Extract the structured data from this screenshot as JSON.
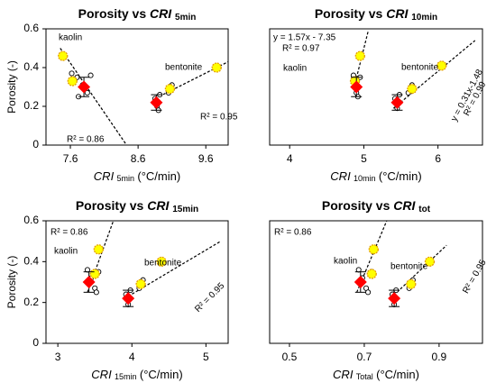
{
  "chart_data": [
    {
      "type": "scatter",
      "title": "Porosity vs",
      "title_var": "CRI",
      "title_sub": "5min",
      "xlabel_var": "CRI",
      "xlabel_sub": "5min",
      "xlabel_unit": "(°C/min)",
      "ylabel": "Porosity (-)",
      "xlim": [
        7.24,
        9.93
      ],
      "xticks": [
        7.6,
        8.6,
        9.6
      ],
      "ylim": [
        0,
        0.6
      ],
      "yticks": [
        0,
        0.2,
        0.4,
        0.6
      ],
      "series": [
        {
          "color": "#ffffff",
          "marker": "circle",
          "x": [
            7.62,
            7.7,
            7.78,
            7.85,
            7.9,
            7.72,
            8.85,
            8.88,
            8.9,
            8.92,
            9.05,
            9.1
          ],
          "values": [
            0.37,
            0.35,
            0.31,
            0.27,
            0.36,
            0.25,
            0.24,
            0.2,
            0.18,
            0.26,
            0.27,
            0.31
          ]
        },
        {
          "color": "#ffff00",
          "marker": "circle",
          "x": [
            7.49,
            7.63,
            9.07,
            9.76
          ],
          "values": [
            0.46,
            0.33,
            0.29,
            0.4
          ]
        },
        {
          "color": "#ff0000",
          "marker": "diamond",
          "x": [
            7.8,
            8.87
          ],
          "values": [
            0.3,
            0.22
          ],
          "errors": [
            0.05,
            0.04
          ]
        }
      ],
      "trendlines": [
        {
          "x": [
            7.45,
            8.43
          ],
          "y": [
            0.5,
            0
          ]
        },
        {
          "x": [
            8.85,
            9.93
          ],
          "y": [
            0.24,
            0.43
          ]
        }
      ],
      "annotations": [
        "kaolin",
        "bentonite",
        "R² = 0.95",
        "R² = 0.86"
      ]
    },
    {
      "type": "scatter",
      "title": "Porosity vs",
      "title_var": "CRI",
      "title_sub": "10min",
      "xlabel_var": "CRI",
      "xlabel_sub": "10min",
      "xlabel_unit": "(°C/min)",
      "xlim": [
        3.73,
        6.6
      ],
      "xticks": [
        4,
        5,
        6
      ],
      "ylim": [
        0,
        0.6
      ],
      "series": [
        {
          "color": "#ffffff",
          "marker": "circle",
          "x": [
            4.86,
            4.88,
            4.9,
            4.92,
            4.95,
            5.42,
            5.45,
            5.48,
            5.6,
            5.65
          ],
          "values": [
            0.36,
            0.33,
            0.27,
            0.25,
            0.35,
            0.24,
            0.19,
            0.26,
            0.27,
            0.31
          ]
        },
        {
          "color": "#ffff00",
          "marker": "circle",
          "x": [
            4.95,
            4.88,
            5.65,
            6.05
          ],
          "values": [
            0.46,
            0.33,
            0.29,
            0.41
          ]
        },
        {
          "color": "#ff0000",
          "marker": "diamond",
          "x": [
            4.9,
            5.45
          ],
          "values": [
            0.3,
            0.22
          ],
          "errors": [
            0.05,
            0.04
          ]
        }
      ],
      "trendlines": [
        {
          "x": [
            4.87,
            5.06
          ],
          "y": [
            0.3,
            0.59
          ]
        },
        {
          "x": [
            5.4,
            6.5
          ],
          "y": [
            0.19,
            0.54
          ]
        }
      ],
      "annotations": [
        "y = 1.57x - 7.35",
        "R² = 0.97",
        "kaolin",
        "bentonite",
        "y = 0.31x-1.48",
        "R² = 0.99"
      ]
    },
    {
      "type": "scatter",
      "title": "Porosity vs",
      "title_var": "CRI",
      "title_sub": "15min",
      "xlabel_var": "CRI",
      "xlabel_sub": "15min",
      "xlabel_unit": "(°C/min)",
      "ylabel": "Porosity (-)",
      "xlim": [
        2.84,
        5.3
      ],
      "xticks": [
        3,
        4,
        5
      ],
      "ylim": [
        0,
        0.6
      ],
      "yticks": [
        0,
        0.2,
        0.4,
        0.6
      ],
      "series": [
        {
          "color": "#ffffff",
          "marker": "circle",
          "x": [
            3.4,
            3.45,
            3.5,
            3.52,
            3.55,
            3.92,
            3.95,
            3.98,
            4.1,
            4.15
          ],
          "values": [
            0.36,
            0.32,
            0.27,
            0.25,
            0.35,
            0.24,
            0.19,
            0.26,
            0.27,
            0.31
          ]
        },
        {
          "color": "#ffff00",
          "marker": "circle",
          "x": [
            3.55,
            3.5,
            4.12,
            4.4
          ],
          "values": [
            0.46,
            0.34,
            0.29,
            0.4
          ]
        },
        {
          "color": "#ff0000",
          "marker": "diamond",
          "x": [
            3.42,
            3.95
          ],
          "values": [
            0.3,
            0.22
          ],
          "errors": [
            0.05,
            0.04
          ]
        }
      ],
      "trendlines": [
        {
          "x": [
            3.4,
            3.75
          ],
          "y": [
            0.25,
            0.6
          ]
        },
        {
          "x": [
            3.95,
            5.2
          ],
          "y": [
            0.23,
            0.5
          ]
        }
      ],
      "annotations": [
        "R² = 0.86",
        "kaolin",
        "bentonite",
        "R² = 0.95"
      ]
    },
    {
      "type": "scatter",
      "title": "Porosity vs",
      "title_var": "CRI",
      "title_sub": "tot",
      "xlabel_var": "CRI",
      "xlabel_sub": "Total",
      "xlabel_unit": "(°C/min)",
      "xlim": [
        0.447,
        1.016
      ],
      "xticks": [
        0.5,
        0.7,
        0.9
      ],
      "ylim": [
        0,
        0.6
      ],
      "series": [
        {
          "color": "#ffffff",
          "marker": "circle",
          "x": [
            0.685,
            0.695,
            0.705,
            0.71,
            0.72,
            0.775,
            0.78,
            0.785,
            0.82,
            0.83
          ],
          "values": [
            0.36,
            0.32,
            0.27,
            0.25,
            0.35,
            0.24,
            0.19,
            0.26,
            0.27,
            0.31
          ]
        },
        {
          "color": "#ffff00",
          "marker": "circle",
          "x": [
            0.725,
            0.72,
            0.825,
            0.875
          ],
          "values": [
            0.46,
            0.34,
            0.29,
            0.4
          ]
        },
        {
          "color": "#ff0000",
          "marker": "diamond",
          "x": [
            0.69,
            0.78
          ],
          "values": [
            0.3,
            0.22
          ],
          "errors": [
            0.05,
            0.04
          ]
        }
      ],
      "trendlines": [
        {
          "x": [
            0.68,
            0.76
          ],
          "y": [
            0.25,
            0.6
          ]
        },
        {
          "x": [
            0.77,
            0.92
          ],
          "y": [
            0.22,
            0.48
          ]
        }
      ],
      "annotations": [
        "R² = 0.86",
        "kaolin",
        "bentonite",
        "R² = 0.95"
      ]
    }
  ]
}
